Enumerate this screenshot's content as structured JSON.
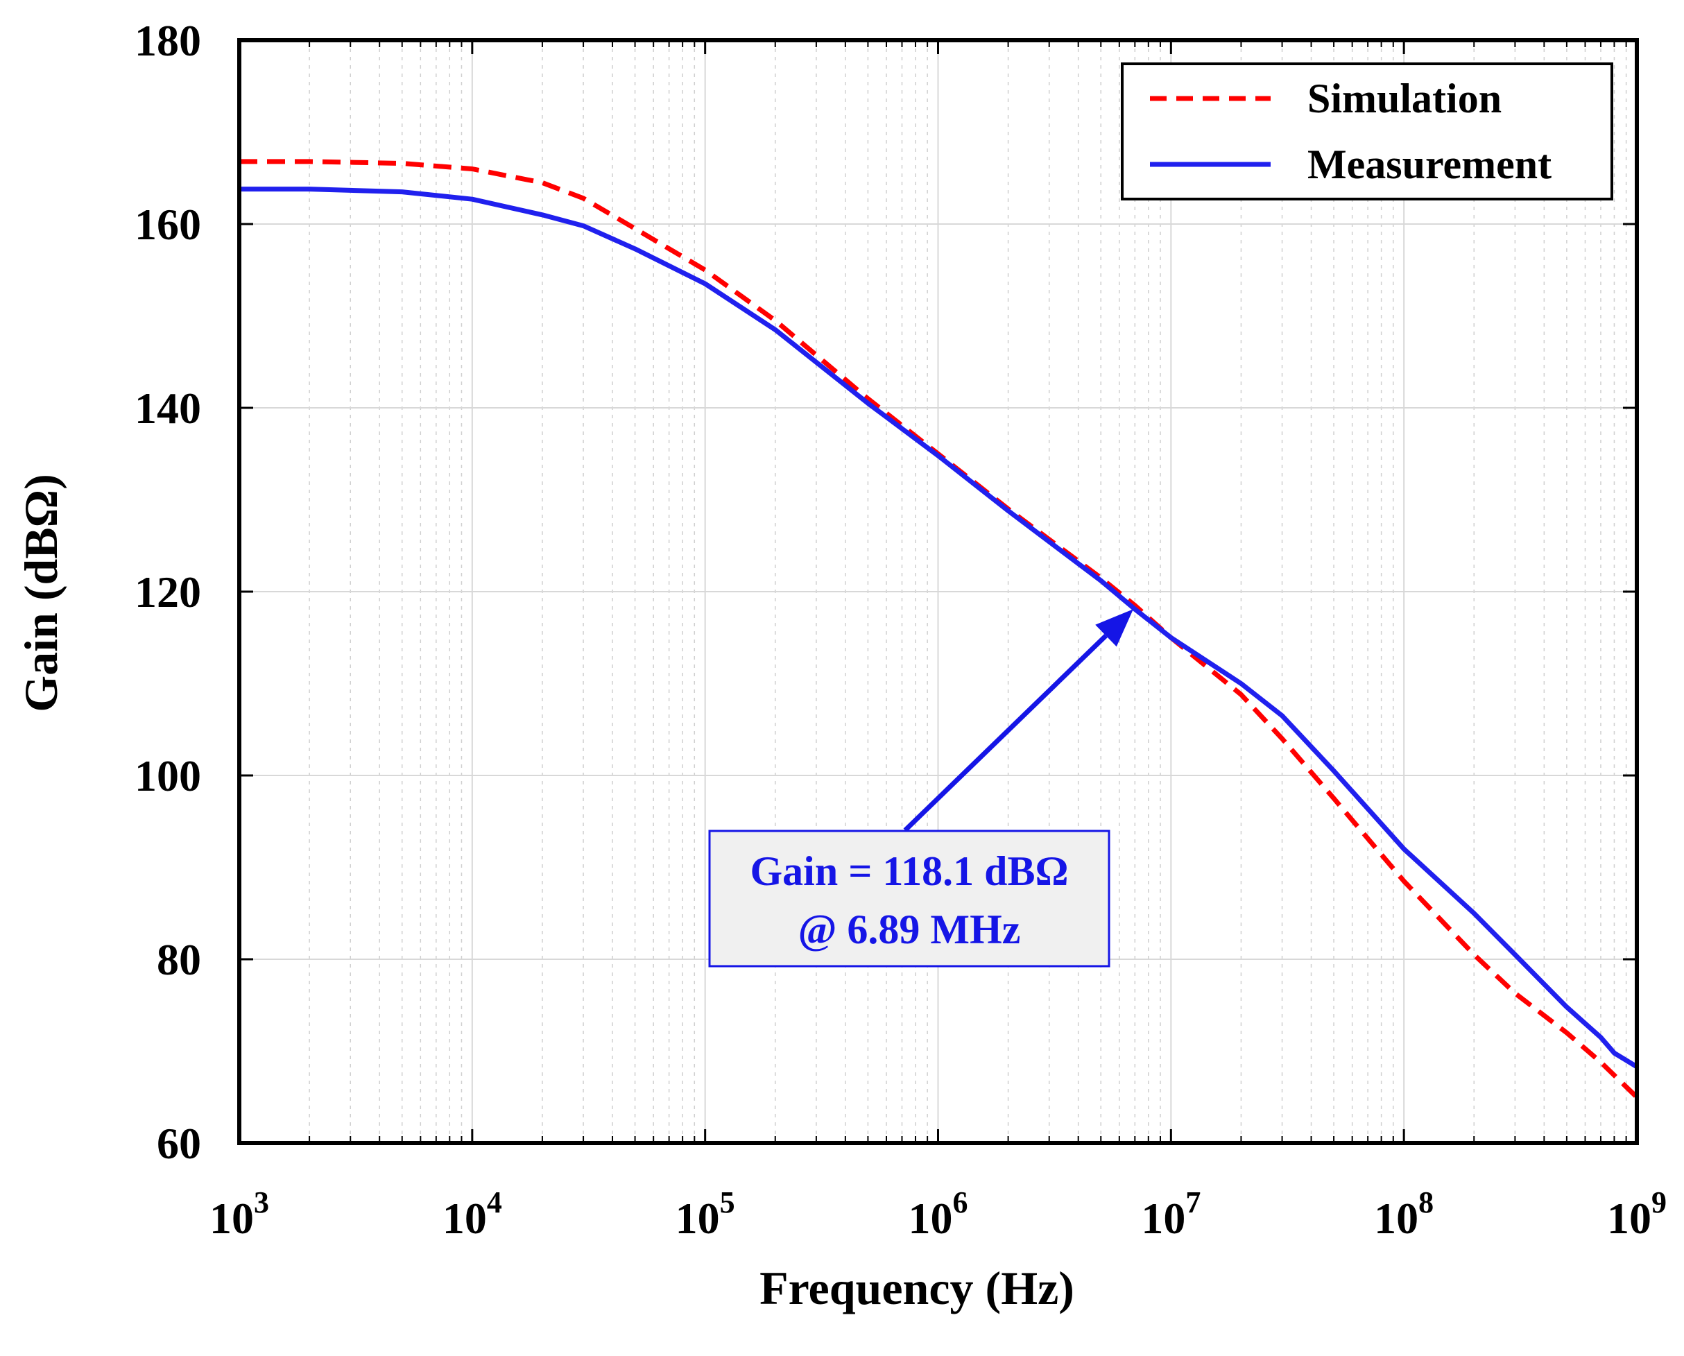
{
  "colors": {
    "simulation": "#ff0000",
    "measurement": "#2020ee",
    "annotation": "#1515e6",
    "annotation_box_fill": "#f0f0f0"
  },
  "chart_data": {
    "type": "line",
    "xscale": "log",
    "xlim": [
      1000,
      1000000000
    ],
    "ylim": [
      60,
      180
    ],
    "xlabel": "Frequency (Hz)",
    "ylabel": "Gain (dBΩ)",
    "grid": true,
    "legend_position": "top-right",
    "x_tick_labels": [
      {
        "value": 1000,
        "base": "10",
        "exp": "3"
      },
      {
        "value": 10000,
        "base": "10",
        "exp": "4"
      },
      {
        "value": 100000,
        "base": "10",
        "exp": "5"
      },
      {
        "value": 1000000,
        "base": "10",
        "exp": "6"
      },
      {
        "value": 10000000,
        "base": "10",
        "exp": "7"
      },
      {
        "value": 100000000,
        "base": "10",
        "exp": "8"
      },
      {
        "value": 1000000000,
        "base": "10",
        "exp": "9"
      }
    ],
    "y_ticks": [
      60,
      80,
      100,
      120,
      140,
      160,
      180
    ],
    "series": [
      {
        "name": "Simulation",
        "style": "dashed",
        "color": "#ff0000",
        "x": [
          1000,
          2000,
          5000,
          10000,
          20000,
          30000,
          50000,
          100000,
          200000,
          500000,
          1000000,
          2000000,
          5000000,
          7000000,
          10000000,
          20000000,
          30000000,
          50000000,
          100000000,
          200000000,
          300000000,
          500000000,
          700000000,
          1000000000
        ],
        "values": [
          166.8,
          166.8,
          166.6,
          166.0,
          164.5,
          162.8,
          159.5,
          155.0,
          149.5,
          141.0,
          135.0,
          129.0,
          121.5,
          118.5,
          115.0,
          108.8,
          104.0,
          97.5,
          88.5,
          80.5,
          76.3,
          72.0,
          68.8,
          65.0
        ]
      },
      {
        "name": "Measurement",
        "style": "solid",
        "color": "#2020ee",
        "x": [
          1000,
          2000,
          5000,
          10000,
          20000,
          30000,
          50000,
          100000,
          200000,
          500000,
          1000000,
          2000000,
          5000000,
          7000000,
          10000000,
          20000000,
          30000000,
          50000000,
          100000000,
          200000000,
          300000000,
          500000000,
          700000000,
          800000000,
          1000000000
        ],
        "values": [
          163.8,
          163.8,
          163.5,
          162.7,
          161.0,
          159.8,
          157.3,
          153.5,
          148.5,
          140.5,
          134.8,
          128.8,
          121.2,
          118.1,
          115.0,
          110.0,
          106.5,
          100.5,
          92.0,
          85.0,
          80.5,
          74.8,
          71.5,
          69.8,
          68.3
        ]
      }
    ],
    "annotation": {
      "line1": "Gain = 118.1 dBΩ",
      "line2": "@ 6.89 MHz",
      "point_x": 6890000,
      "point_y": 118.1
    }
  }
}
